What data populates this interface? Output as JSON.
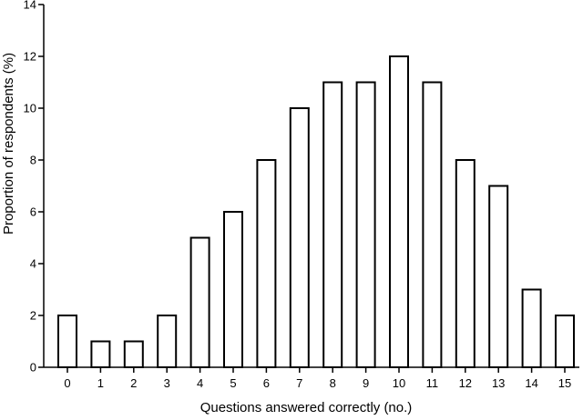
{
  "chart_data": {
    "type": "bar",
    "categories": [
      "0",
      "1",
      "2",
      "3",
      "4",
      "5",
      "6",
      "7",
      "8",
      "9",
      "10",
      "11",
      "12",
      "13",
      "14",
      "15"
    ],
    "values": [
      2,
      1,
      1,
      2,
      5,
      6,
      8,
      10,
      11,
      11,
      12,
      11,
      8,
      7,
      3,
      2
    ],
    "title": "",
    "xlabel": "Questions answered correctly (no.)",
    "ylabel": "Proportion of respondents (%)",
    "ylim": [
      0,
      14
    ],
    "yticks": [
      0,
      2,
      4,
      6,
      8,
      10,
      12,
      14
    ],
    "grid": false,
    "legend": "none",
    "colors": {
      "bar_fill": "#ffffff",
      "bar_stroke": "#000000",
      "axis": "#000000"
    }
  }
}
